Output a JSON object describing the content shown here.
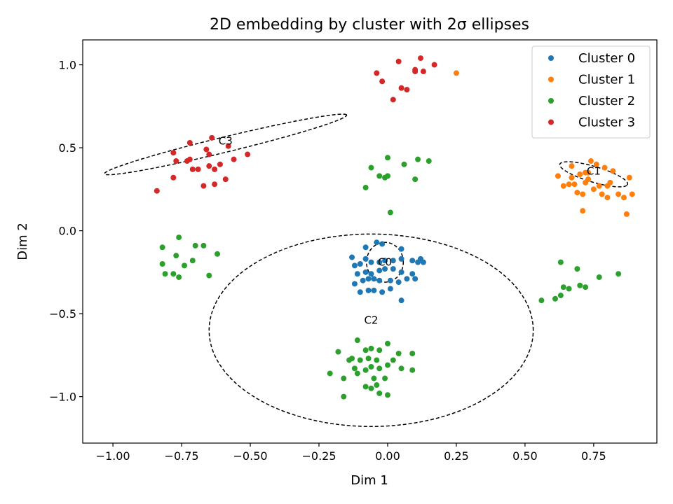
{
  "chart_data": {
    "type": "scatter",
    "title": "2D embedding by cluster with 2σ ellipses",
    "xlabel": "Dim 1",
    "ylabel": "Dim 2",
    "xlim": [
      -1.11,
      0.98
    ],
    "ylim": [
      -1.28,
      1.15
    ],
    "xticks": [
      -1.0,
      -0.75,
      -0.5,
      -0.25,
      0.0,
      0.25,
      0.5,
      0.75
    ],
    "xtick_labels": [
      "−1.00",
      "−0.75",
      "−0.50",
      "−0.25",
      "0.00",
      "0.25",
      "0.50",
      "0.75"
    ],
    "yticks": [
      -1.0,
      -0.5,
      0.0,
      0.5,
      1.0
    ],
    "ytick_labels": [
      "−1.0",
      "−0.5",
      "0.0",
      "0.5",
      "1.0"
    ],
    "grid": false,
    "legend_position": "upper right",
    "series": [
      {
        "name": "Cluster 0",
        "color": "#1f77b4",
        "points": [
          [
            -0.13,
            -0.16
          ],
          [
            -0.08,
            -0.1
          ],
          [
            -0.04,
            -0.07
          ],
          [
            -0.02,
            -0.08
          ],
          [
            0.05,
            -0.11
          ],
          [
            0.12,
            -0.17
          ],
          [
            0.13,
            -0.19
          ],
          [
            -0.12,
            -0.21
          ],
          [
            -0.1,
            -0.2
          ],
          [
            -0.08,
            -0.17
          ],
          [
            -0.06,
            -0.19
          ],
          [
            -0.03,
            -0.19
          ],
          [
            -0.01,
            -0.18
          ],
          [
            0.02,
            -0.18
          ],
          [
            0.05,
            -0.17
          ],
          [
            0.09,
            -0.18
          ],
          [
            0.11,
            -0.19
          ],
          [
            -0.11,
            -0.26
          ],
          [
            -0.08,
            -0.25
          ],
          [
            -0.06,
            -0.26
          ],
          [
            -0.03,
            -0.24
          ],
          [
            -0.01,
            -0.23
          ],
          [
            0.02,
            -0.23
          ],
          [
            0.05,
            -0.25
          ],
          [
            0.09,
            -0.26
          ],
          [
            -0.12,
            -0.32
          ],
          [
            -0.09,
            -0.3
          ],
          [
            -0.07,
            -0.29
          ],
          [
            -0.05,
            -0.29
          ],
          [
            -0.03,
            -0.3
          ],
          [
            0.01,
            -0.3
          ],
          [
            0.04,
            -0.31
          ],
          [
            0.07,
            -0.29
          ],
          [
            0.1,
            -0.29
          ],
          [
            -0.1,
            -0.37
          ],
          [
            -0.07,
            -0.36
          ],
          [
            -0.05,
            -0.36
          ],
          [
            -0.02,
            -0.37
          ],
          [
            0.01,
            -0.35
          ],
          [
            0.05,
            -0.42
          ]
        ]
      },
      {
        "name": "Cluster 1",
        "color": "#ff7f0e",
        "points": [
          [
            0.25,
            0.95
          ],
          [
            0.62,
            0.33
          ],
          [
            0.64,
            0.27
          ],
          [
            0.66,
            0.28
          ],
          [
            0.67,
            0.39
          ],
          [
            0.68,
            0.28
          ],
          [
            0.69,
            0.23
          ],
          [
            0.7,
            0.34
          ],
          [
            0.71,
            0.22
          ],
          [
            0.72,
            0.29
          ],
          [
            0.72,
            0.35
          ],
          [
            0.73,
            0.31
          ],
          [
            0.73,
            0.35
          ],
          [
            0.74,
            0.42
          ],
          [
            0.75,
            0.25
          ],
          [
            0.76,
            0.4
          ],
          [
            0.77,
            0.27
          ],
          [
            0.78,
            0.22
          ],
          [
            0.79,
            0.38
          ],
          [
            0.8,
            0.27
          ],
          [
            0.81,
            0.29
          ],
          [
            0.82,
            0.36
          ],
          [
            0.84,
            0.22
          ],
          [
            0.86,
            0.2
          ],
          [
            0.88,
            0.32
          ],
          [
            0.89,
            0.22
          ],
          [
            0.87,
            0.1
          ],
          [
            0.71,
            0.12
          ],
          [
            0.67,
            0.32
          ],
          [
            0.8,
            0.2
          ]
        ]
      },
      {
        "name": "Cluster 2",
        "color": "#2ca02c",
        "points": [
          [
            -0.06,
            0.38
          ],
          [
            -0.03,
            0.33
          ],
          [
            -0.01,
            0.32
          ],
          [
            0.0,
            0.33
          ],
          [
            0.0,
            0.44
          ],
          [
            0.06,
            0.4
          ],
          [
            0.11,
            0.43
          ],
          [
            0.15,
            0.42
          ],
          [
            0.1,
            0.31
          ],
          [
            -0.08,
            0.26
          ],
          [
            0.01,
            0.11
          ],
          [
            -0.76,
            -0.04
          ],
          [
            -0.82,
            -0.1
          ],
          [
            -0.7,
            -0.09
          ],
          [
            -0.67,
            -0.09
          ],
          [
            -0.77,
            -0.15
          ],
          [
            -0.62,
            -0.14
          ],
          [
            -0.71,
            -0.18
          ],
          [
            -0.82,
            -0.2
          ],
          [
            -0.74,
            -0.21
          ],
          [
            -0.81,
            -0.26
          ],
          [
            -0.78,
            -0.26
          ],
          [
            -0.76,
            -0.28
          ],
          [
            -0.65,
            -0.27
          ],
          [
            0.63,
            -0.19
          ],
          [
            0.69,
            -0.23
          ],
          [
            0.77,
            -0.28
          ],
          [
            0.84,
            -0.26
          ],
          [
            0.64,
            -0.34
          ],
          [
            0.66,
            -0.35
          ],
          [
            0.7,
            -0.33
          ],
          [
            0.72,
            -0.34
          ],
          [
            0.63,
            -0.39
          ],
          [
            0.61,
            -0.41
          ],
          [
            0.56,
            -0.42
          ],
          [
            -0.11,
            -0.66
          ],
          [
            -0.06,
            -0.71
          ],
          [
            -0.03,
            -0.72
          ],
          [
            0.0,
            -0.68
          ],
          [
            -0.08,
            -0.72
          ],
          [
            0.04,
            -0.74
          ],
          [
            0.09,
            -0.74
          ],
          [
            -0.18,
            -0.73
          ],
          [
            -0.14,
            -0.78
          ],
          [
            -0.13,
            -0.77
          ],
          [
            -0.1,
            -0.78
          ],
          [
            -0.07,
            -0.77
          ],
          [
            -0.04,
            -0.78
          ],
          [
            0.02,
            -0.78
          ],
          [
            -0.12,
            -0.83
          ],
          [
            -0.08,
            -0.84
          ],
          [
            -0.06,
            -0.82
          ],
          [
            -0.03,
            -0.83
          ],
          [
            0.0,
            -0.81
          ],
          [
            0.05,
            -0.83
          ],
          [
            0.09,
            -0.84
          ],
          [
            -0.21,
            -0.86
          ],
          [
            -0.16,
            -0.89
          ],
          [
            -0.08,
            -0.94
          ],
          [
            -0.06,
            -0.95
          ],
          [
            -0.04,
            -0.93
          ],
          [
            -0.01,
            -0.89
          ],
          [
            -0.03,
            -0.98
          ],
          [
            0.0,
            -0.99
          ],
          [
            -0.16,
            -1.0
          ],
          [
            -0.11,
            -0.86
          ],
          [
            -0.05,
            -0.89
          ]
        ]
      },
      {
        "name": "Cluster 3",
        "color": "#d62728",
        "points": [
          [
            -0.04,
            0.95
          ],
          [
            -0.02,
            0.9
          ],
          [
            0.04,
            1.02
          ],
          [
            0.05,
            0.86
          ],
          [
            0.07,
            0.85
          ],
          [
            0.02,
            0.79
          ],
          [
            0.1,
            0.97
          ],
          [
            0.12,
            1.04
          ],
          [
            0.13,
            0.96
          ],
          [
            0.17,
            1.0
          ],
          [
            0.1,
            0.96
          ],
          [
            -0.84,
            0.24
          ],
          [
            -0.78,
            0.32
          ],
          [
            -0.78,
            0.47
          ],
          [
            -0.77,
            0.42
          ],
          [
            -0.73,
            0.42
          ],
          [
            -0.72,
            0.53
          ],
          [
            -0.72,
            0.43
          ],
          [
            -0.71,
            0.37
          ],
          [
            -0.69,
            0.37
          ],
          [
            -0.67,
            0.27
          ],
          [
            -0.66,
            0.49
          ],
          [
            -0.65,
            0.39
          ],
          [
            -0.65,
            0.46
          ],
          [
            -0.64,
            0.56
          ],
          [
            -0.63,
            0.37
          ],
          [
            -0.63,
            0.28
          ],
          [
            -0.61,
            0.4
          ],
          [
            -0.59,
            0.31
          ],
          [
            -0.58,
            0.51
          ],
          [
            -0.56,
            0.43
          ],
          [
            -0.51,
            0.46
          ]
        ]
      }
    ],
    "ellipses": [
      {
        "label": "C0",
        "cx": -0.01,
        "cy": -0.19,
        "rx": 0.067,
        "ry": 0.12,
        "angle_deg": 0
      },
      {
        "label": "C1",
        "cx": 0.75,
        "cy": 0.34,
        "rx": 0.138,
        "ry": 0.044,
        "angle_deg": -28
      },
      {
        "label": "C2",
        "cx": -0.06,
        "cy": -0.6,
        "rx": 0.59,
        "ry": 0.58,
        "angle_deg": 0
      },
      {
        "label": "C3",
        "cx": -0.59,
        "cy": 0.52,
        "rx": 0.475,
        "ry": 0.044,
        "angle_deg": 22
      }
    ]
  }
}
